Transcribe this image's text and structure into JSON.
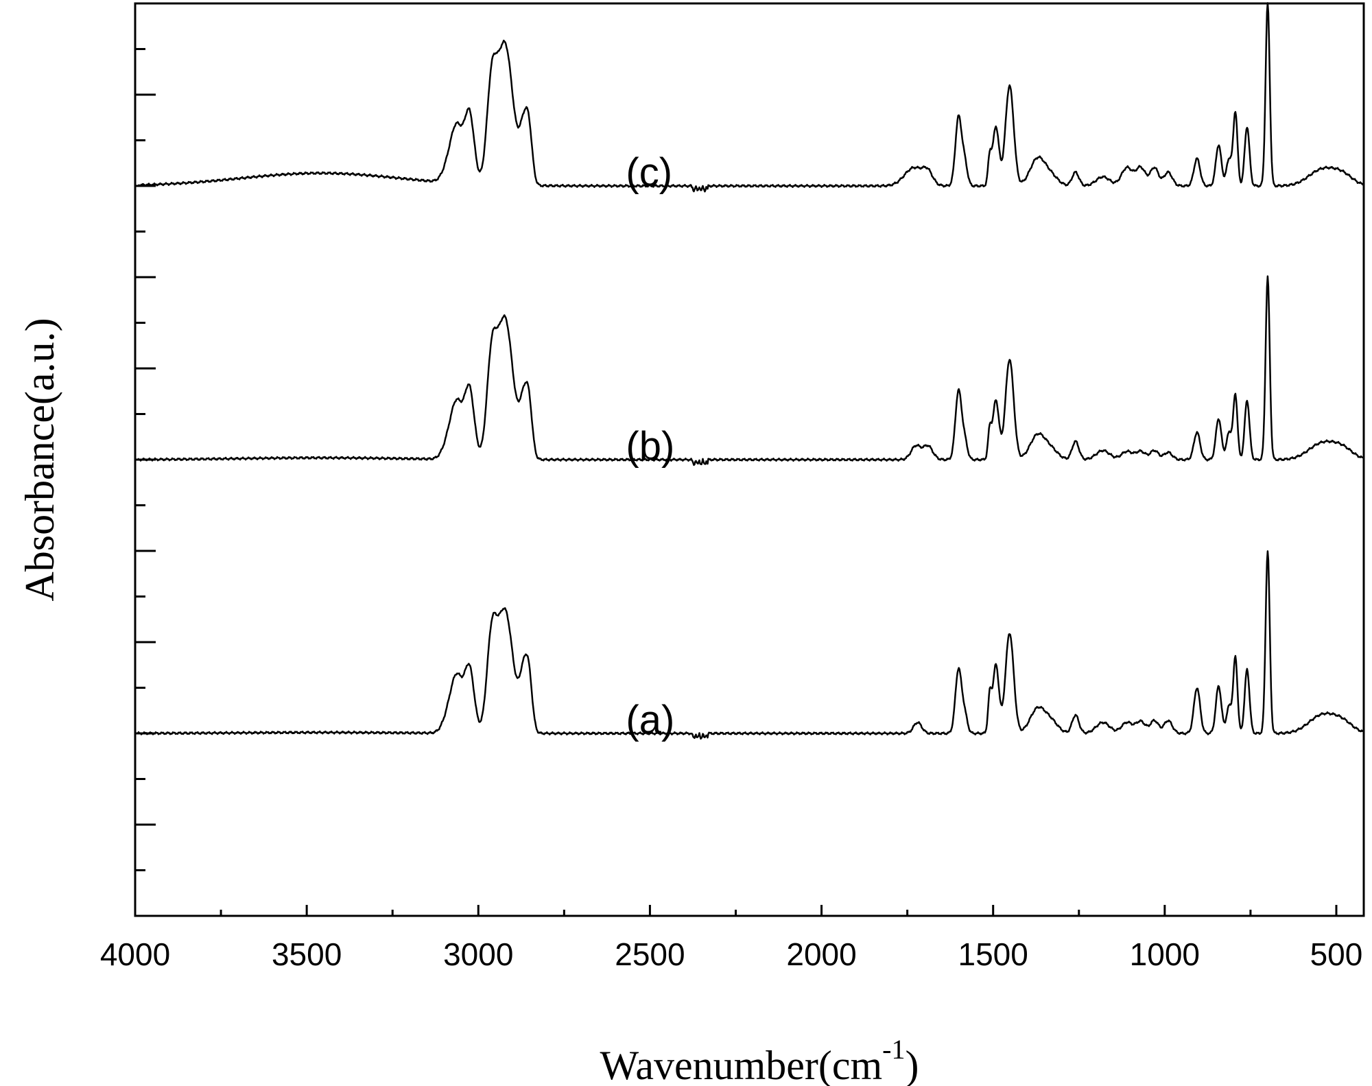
{
  "chart_data": {
    "type": "line",
    "title": "",
    "xlabel": "Wavenumber(cm",
    "xlabel_sup": "-1",
    "xlabel_close": ")",
    "ylabel": "Absorbance(a.u.)",
    "xlim": [
      4000,
      420
    ],
    "x_reversed": true,
    "x_ticks": [
      4000,
      3500,
      3000,
      2500,
      2000,
      1500,
      1000,
      500
    ],
    "x_tick_labels": [
      "4000",
      "3500",
      "3000",
      "2500",
      "2000",
      "1500",
      "1000",
      "500"
    ],
    "ylim": [
      0,
      100
    ],
    "y_ticks_shown_without_labels": true,
    "grid": false,
    "legend": "none",
    "line_color": "#000000",
    "series": [
      {
        "name": "(c)",
        "baseline": 80,
        "label_at": [
          3100,
          81.5
        ],
        "peaks": [
          [
            3460,
            230,
            1.4
          ],
          [
            3082,
            18,
            2.5
          ],
          [
            3060,
            16,
            5.0
          ],
          [
            3026,
            14,
            7.6
          ],
          [
            2962,
            14,
            9.0
          ],
          [
            2923,
            24,
            15.5
          ],
          [
            2868,
            12,
            5.5
          ],
          [
            2852,
            10,
            5.0
          ],
          [
            1730,
            28,
            2.0
          ],
          [
            1690,
            14,
            1.2
          ],
          [
            1601,
            9,
            7.5
          ],
          [
            1583,
            8,
            2.5
          ],
          [
            1510,
            5,
            3.0
          ],
          [
            1492,
            9,
            6.5
          ],
          [
            1452,
            12,
            11.0
          ],
          [
            1370,
            22,
            3.0
          ],
          [
            1330,
            20,
            1.0
          ],
          [
            1260,
            10,
            1.5
          ],
          [
            1180,
            20,
            1.0
          ],
          [
            1110,
            16,
            2.0
          ],
          [
            1070,
            14,
            2.0
          ],
          [
            1030,
            12,
            2.0
          ],
          [
            990,
            12,
            1.5
          ],
          [
            906,
            9,
            3.0
          ],
          [
            843,
            8,
            4.5
          ],
          [
            812,
            8,
            3.0
          ],
          [
            794,
            6,
            8.0
          ],
          [
            760,
            7,
            6.5
          ],
          [
            700,
            6,
            20.0
          ],
          [
            540,
            40,
            1.8
          ],
          [
            480,
            30,
            1.0
          ]
        ]
      },
      {
        "name": "(b)",
        "baseline": 50,
        "label_at": [
          3100,
          51.5
        ],
        "peaks": [
          [
            3460,
            230,
            0.2
          ],
          [
            3082,
            18,
            2.5
          ],
          [
            3060,
            16,
            5.0
          ],
          [
            3026,
            14,
            7.6
          ],
          [
            2962,
            14,
            9.0
          ],
          [
            2923,
            24,
            15.5
          ],
          [
            2868,
            12,
            5.5
          ],
          [
            2852,
            10,
            5.0
          ],
          [
            1725,
            14,
            1.5
          ],
          [
            1690,
            14,
            1.5
          ],
          [
            1601,
            9,
            7.5
          ],
          [
            1583,
            8,
            2.0
          ],
          [
            1510,
            5,
            3.0
          ],
          [
            1492,
            9,
            6.5
          ],
          [
            1452,
            12,
            11.0
          ],
          [
            1370,
            22,
            2.7
          ],
          [
            1330,
            20,
            1.0
          ],
          [
            1260,
            10,
            2.0
          ],
          [
            1180,
            20,
            1.0
          ],
          [
            1110,
            16,
            0.9
          ],
          [
            1070,
            14,
            0.9
          ],
          [
            1030,
            12,
            1.0
          ],
          [
            990,
            12,
            0.8
          ],
          [
            906,
            9,
            3.0
          ],
          [
            843,
            8,
            4.5
          ],
          [
            812,
            8,
            3.0
          ],
          [
            794,
            6,
            7.0
          ],
          [
            760,
            7,
            6.5
          ],
          [
            700,
            6,
            20.0
          ],
          [
            540,
            40,
            1.8
          ],
          [
            480,
            30,
            1.0
          ]
        ]
      },
      {
        "name": "(a)",
        "baseline": 20,
        "label_at": [
          3100,
          21.5
        ],
        "peaks": [
          [
            3460,
            230,
            0.1
          ],
          [
            3082,
            18,
            2.5
          ],
          [
            3060,
            16,
            5.0
          ],
          [
            3026,
            14,
            7.0
          ],
          [
            2962,
            14,
            8.6
          ],
          [
            2923,
            24,
            13.5
          ],
          [
            2868,
            12,
            5.8
          ],
          [
            2852,
            10,
            5.0
          ],
          [
            1720,
            12,
            1.2
          ],
          [
            1601,
            9,
            7.0
          ],
          [
            1583,
            8,
            2.0
          ],
          [
            1510,
            5,
            3.8
          ],
          [
            1492,
            9,
            7.5
          ],
          [
            1452,
            12,
            11.0
          ],
          [
            1370,
            22,
            2.7
          ],
          [
            1330,
            20,
            1.2
          ],
          [
            1260,
            10,
            2.0
          ],
          [
            1180,
            20,
            1.2
          ],
          [
            1110,
            16,
            1.2
          ],
          [
            1070,
            14,
            1.3
          ],
          [
            1030,
            12,
            1.4
          ],
          [
            990,
            12,
            1.4
          ],
          [
            906,
            9,
            5.0
          ],
          [
            843,
            8,
            5.2
          ],
          [
            812,
            8,
            3.0
          ],
          [
            794,
            6,
            8.2
          ],
          [
            760,
            7,
            7.0
          ],
          [
            700,
            6,
            20.0
          ],
          [
            540,
            40,
            2.0
          ],
          [
            480,
            30,
            1.0
          ]
        ]
      }
    ]
  }
}
